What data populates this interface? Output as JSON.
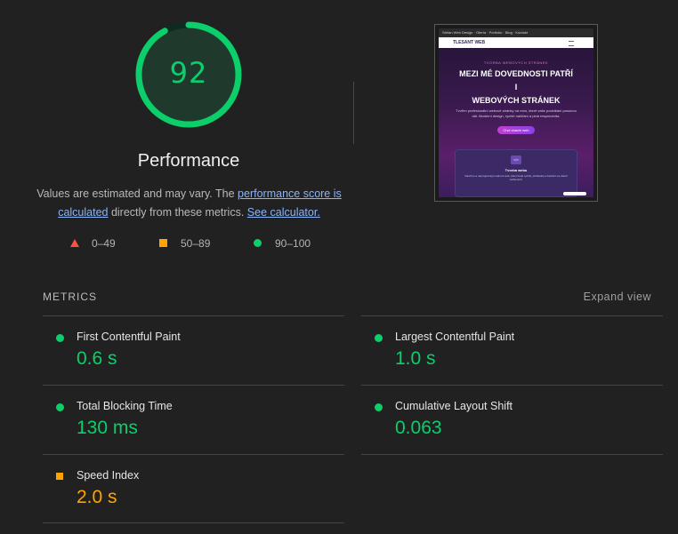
{
  "score": {
    "value": "92",
    "fraction": 0.92,
    "color": "#0cce6b",
    "title": "Performance"
  },
  "description": {
    "part1": "Values are estimated and may vary. The ",
    "link1": "performance score is calculated",
    "part2": " directly from these metrics.",
    "link2": "See calculator."
  },
  "legend": [
    {
      "icon": "triangle-icon",
      "range": "0–49",
      "color": "#ff4e42"
    },
    {
      "icon": "square-icon",
      "range": "50–89",
      "color": "#ffa400"
    },
    {
      "icon": "circle-icon",
      "range": "90–100",
      "color": "#0cce6b"
    }
  ],
  "screenshot": {
    "browser_bar": "Stefan Web Design · Oferta · Portfolio · Blog · Kontakt",
    "logo": "TLESANT   WEB",
    "kicker": "TVORBA WEBOVÝCH STRÁNEK",
    "headline_1": "MEZI MÉ DOVEDNOSTI PATŘÍ",
    "headline_2": "I",
    "headline_3": "WEBOVÝCH STRÁNEK",
    "paragraph": "Tvořím profesionální webové stránky na míru, které vaše podnikání posunou dál. Moderní design, rychlé načítání a plná responzivita.",
    "button": "Chci vlastní web",
    "card_icon": "</>",
    "card_title": "Tvorba webu",
    "card_text": "Navrhnu a naprogramuji moderní web, který bude rychlý, přehledný a funkční na všech zařízeních."
  },
  "metrics": {
    "header": "METRICS",
    "expand": "Expand view",
    "items": [
      {
        "title": "First Contentful Paint",
        "value": "0.6 s",
        "rating": "good"
      },
      {
        "title": "Largest Contentful Paint",
        "value": "1.0 s",
        "rating": "good"
      },
      {
        "title": "Total Blocking Time",
        "value": "130 ms",
        "rating": "good"
      },
      {
        "title": "Cumulative Layout Shift",
        "value": "0.063",
        "rating": "good"
      },
      {
        "title": "Speed Index",
        "value": "2.0 s",
        "rating": "average"
      }
    ]
  }
}
